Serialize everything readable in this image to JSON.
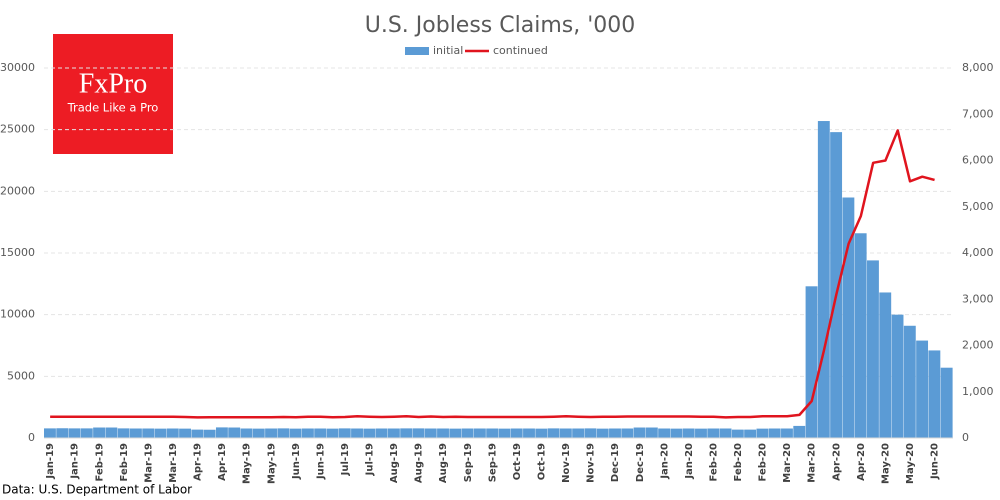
{
  "chart_data": {
    "type": "bar-line",
    "title": "U.S. Jobless Claims, '000",
    "source": "Data: U.S. Department of Labor",
    "logo": {
      "name": "FxPro",
      "tagline": "Trade Like a Pro"
    },
    "categories": [
      "Jan-19",
      null,
      "Jan-19",
      null,
      "Feb-19",
      null,
      "Feb-19",
      null,
      "Mar-19",
      null,
      "Mar-19",
      null,
      "Apr-19",
      null,
      "Apr-19",
      null,
      "May-19",
      null,
      "May-19",
      null,
      "Jun-19",
      null,
      "Jun-19",
      null,
      "Jul-19",
      null,
      "Jul-19",
      null,
      "Aug-19",
      null,
      "Aug-19",
      null,
      "Aug-19",
      null,
      "Sep-19",
      null,
      "Sep-19",
      null,
      "Oct-19",
      null,
      "Oct-19",
      null,
      "Nov-19",
      null,
      "Nov-19",
      null,
      "Dec-19",
      null,
      "Dec-19",
      null,
      "Jan-20",
      null,
      "Jan-20",
      null,
      "Feb-20",
      null,
      "Feb-20",
      null,
      "Feb-20",
      null,
      "Mar-20",
      null,
      "Mar-20",
      null,
      "Apr-20",
      null,
      "Apr-20",
      null,
      "May-20",
      null,
      "May-20",
      null,
      "Jun-20",
      null
    ],
    "series": [
      {
        "name": "initial",
        "kind": "bar",
        "color": "#5b9bd5",
        "values": [
          780,
          790,
          780,
          780,
          850,
          850,
          780,
          770,
          770,
          760,
          770,
          760,
          680,
          670,
          860,
          850,
          770,
          760,
          770,
          780,
          760,
          770,
          770,
          760,
          780,
          770,
          760,
          770,
          770,
          780,
          780,
          770,
          770,
          760,
          770,
          770,
          770,
          760,
          770,
          770,
          760,
          780,
          770,
          770,
          780,
          760,
          770,
          770,
          850,
          850,
          770,
          760,
          770,
          760,
          770,
          770,
          680,
          680,
          760,
          770,
          770,
          980,
          12300,
          25700,
          24800,
          19500,
          16600,
          14400,
          11800,
          10000,
          9100,
          7900,
          7100,
          5700
        ]
      },
      {
        "name": "continued",
        "kind": "line",
        "axis": "y2",
        "color": "#e0141e",
        "values": [
          460,
          460,
          460,
          460,
          460,
          460,
          460,
          460,
          460,
          460,
          460,
          455,
          445,
          450,
          450,
          450,
          450,
          450,
          450,
          455,
          450,
          460,
          460,
          450,
          455,
          470,
          460,
          455,
          460,
          470,
          455,
          465,
          455,
          460,
          455,
          455,
          455,
          455,
          455,
          455,
          455,
          460,
          470,
          460,
          455,
          460,
          460,
          465,
          465,
          465,
          465,
          465,
          465,
          460,
          460,
          445,
          455,
          455,
          470,
          470,
          470,
          500,
          800,
          1900,
          3100,
          4200,
          4800,
          5950,
          6000,
          6650,
          5550,
          5650,
          5580,
          null
        ]
      }
    ],
    "ylim": [
      0,
      30000
    ],
    "yticks": [
      0,
      5000,
      10000,
      15000,
      20000,
      25000,
      30000
    ],
    "y2lim": [
      0,
      8000
    ],
    "y2ticks": [
      0,
      {
        "value": 1000,
        "label": "1,000"
      },
      {
        "value": 2000,
        "label": "2,000"
      },
      {
        "value": 3000,
        "label": "3,000"
      },
      {
        "value": 4000,
        "label": "4,000"
      },
      {
        "value": 5000,
        "label": "5,000"
      },
      {
        "value": 6000,
        "label": "6,000"
      },
      {
        "value": 7000,
        "label": "7,000"
      },
      {
        "value": 8000,
        "label": "8,000"
      }
    ],
    "grid": true,
    "legend": "top"
  }
}
